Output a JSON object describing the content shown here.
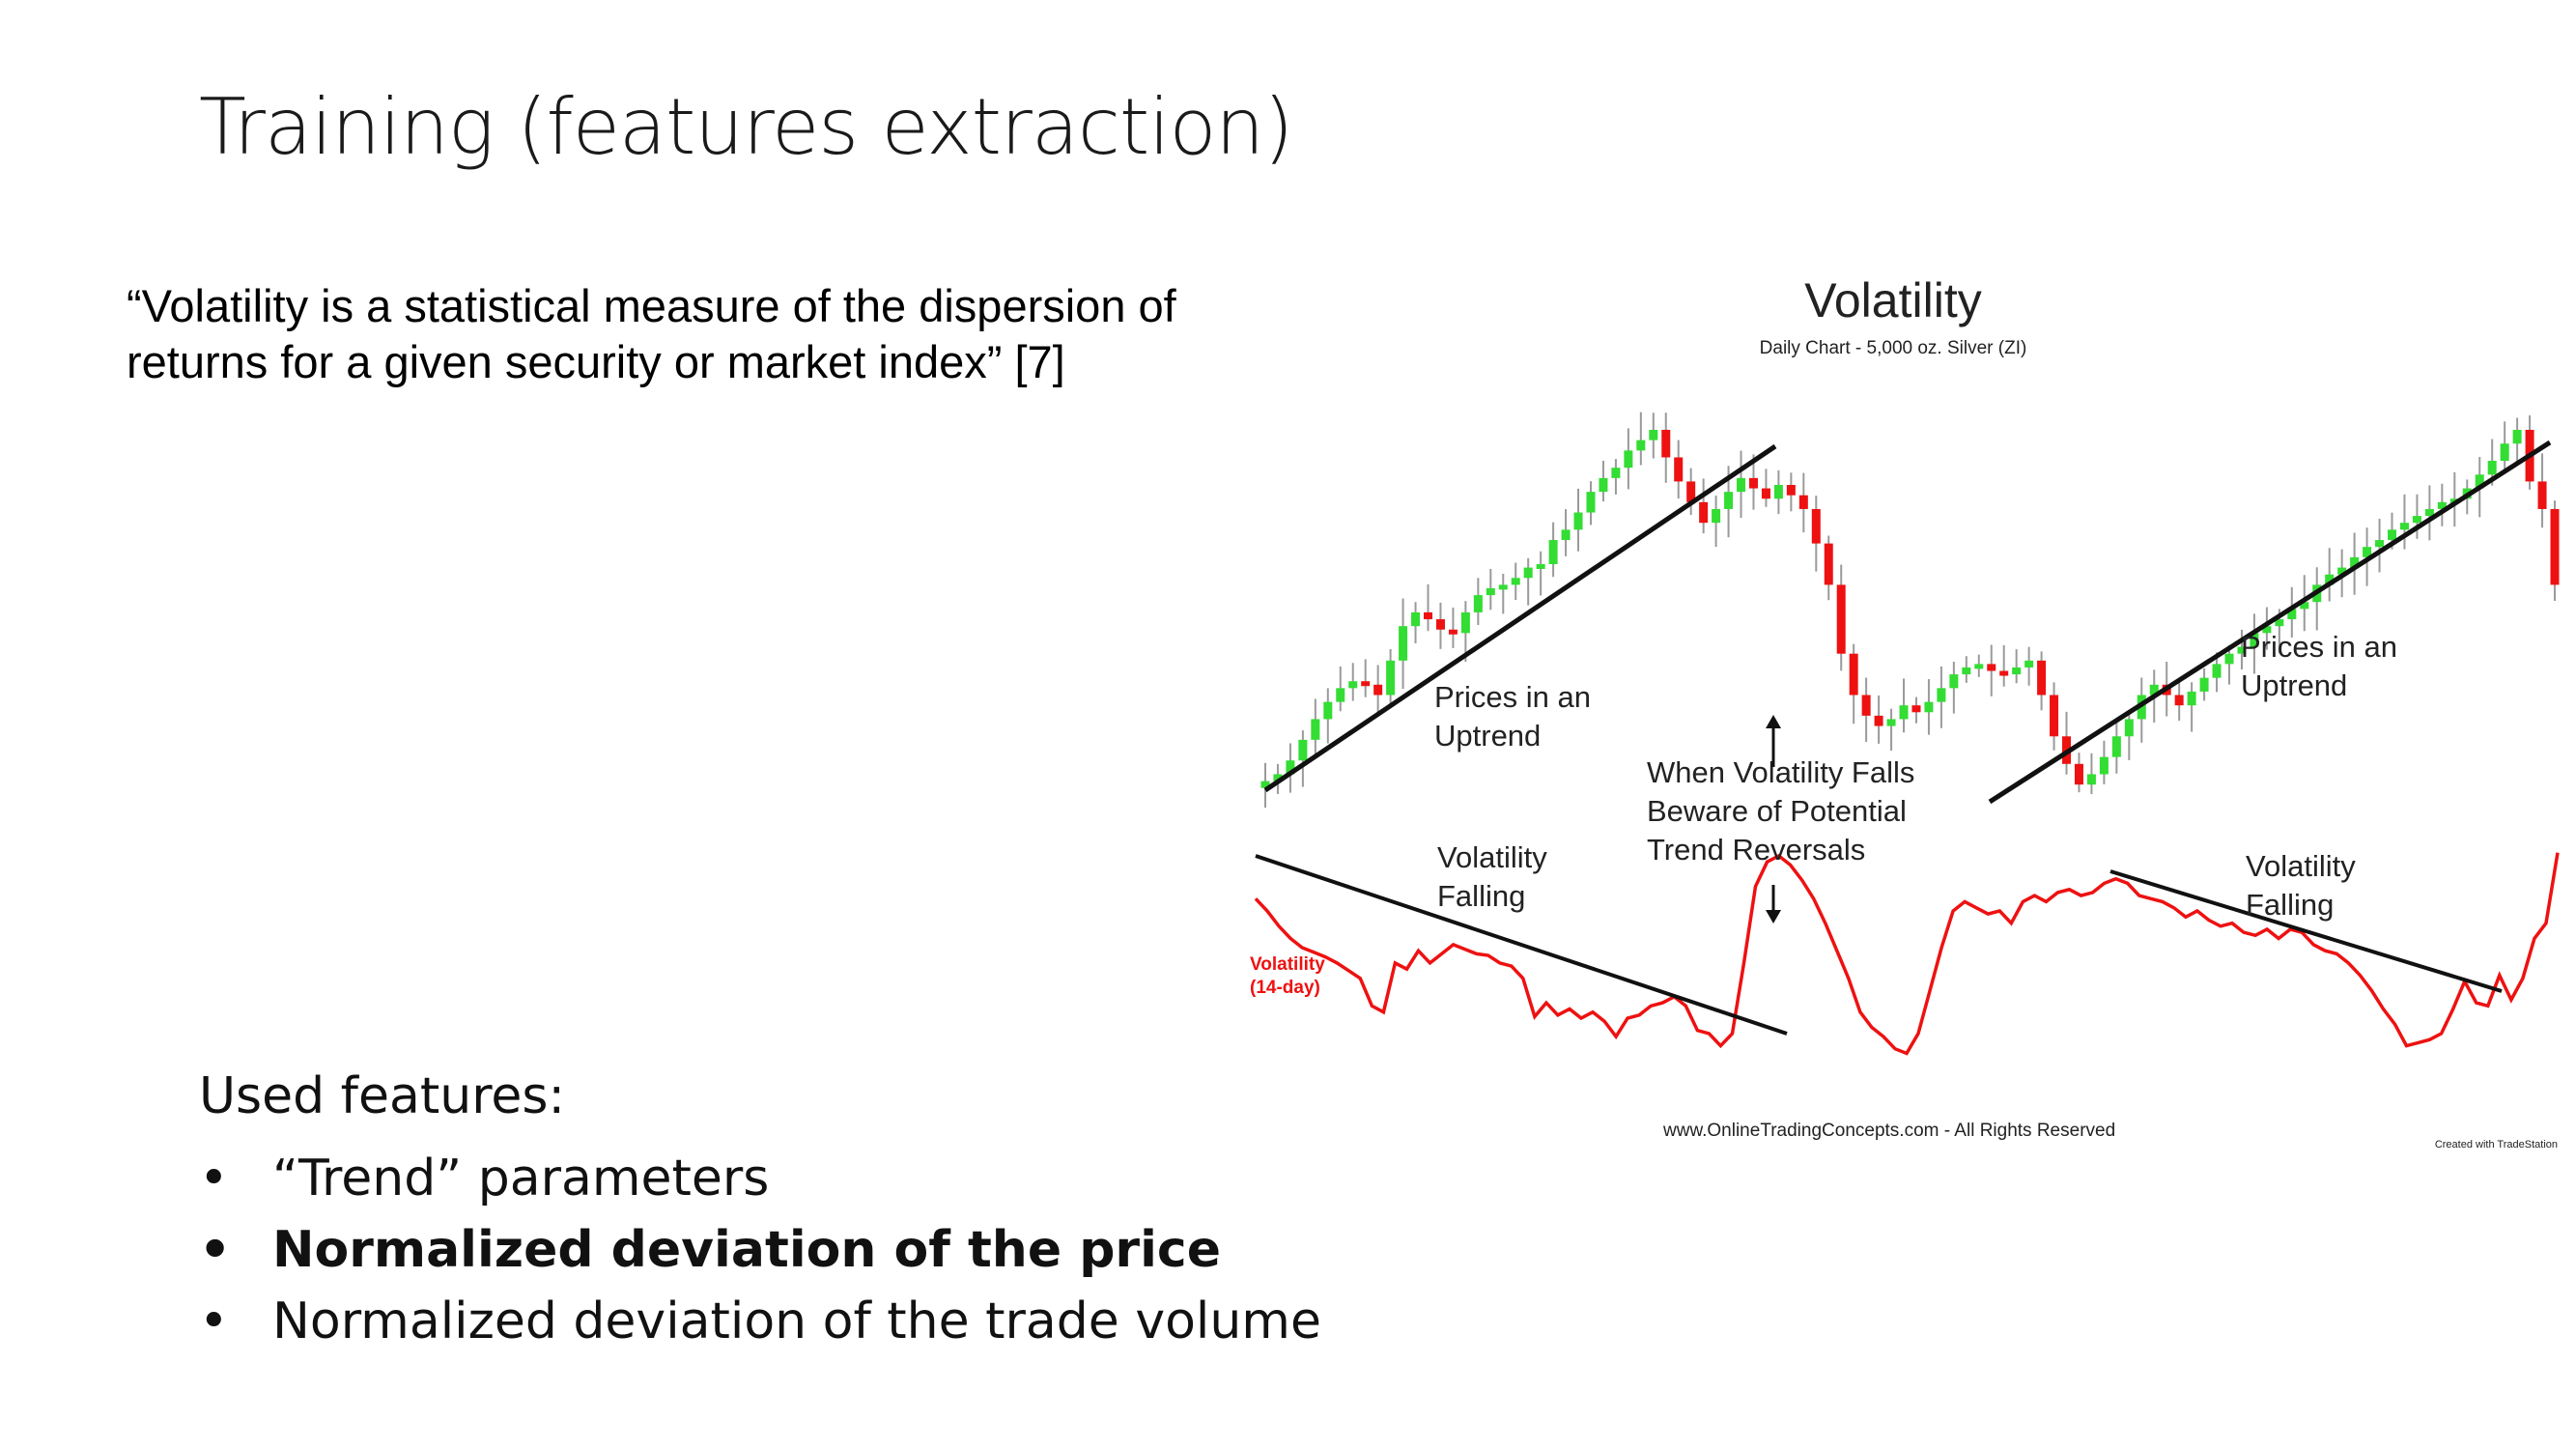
{
  "slide": {
    "title": "Training (features extraction)",
    "quote": "“Volatility is a statistical measure of the dispersion of returns for a given security or market index” [7]",
    "features_title": "Used features:",
    "features": [
      {
        "label": "“Trend” parameters",
        "bold": false
      },
      {
        "label": "Normalized deviation of the price",
        "bold": true
      },
      {
        "label": "Normalized deviation of the trade volume",
        "bold": false
      }
    ]
  },
  "chart_data": {
    "type": "line",
    "title": "Volatility",
    "subtitle": "Daily Chart - 5,000 oz. Silver (ZI)",
    "series": [
      {
        "name": "Price",
        "style": "candlestick",
        "up_color": "#33dd33",
        "down_color": "#ee1111",
        "values": [
          1,
          3,
          7,
          13,
          19,
          24,
          28,
          30,
          29,
          26,
          36,
          46,
          50,
          48,
          45,
          44,
          50,
          55,
          57,
          58,
          60,
          63,
          64,
          71,
          74,
          79,
          85,
          89,
          92,
          97,
          100,
          103,
          95,
          88,
          82,
          76,
          80,
          85,
          89,
          86,
          83,
          87,
          84,
          80,
          70,
          58,
          38,
          26,
          20,
          17,
          19,
          23,
          21,
          24,
          28,
          32,
          34,
          35,
          33,
          32,
          34,
          36,
          26,
          14,
          6,
          0,
          3,
          8,
          14,
          19,
          26,
          29,
          26,
          23,
          27,
          31,
          35,
          38,
          40,
          44,
          46,
          48,
          51,
          53,
          58,
          61,
          63,
          66,
          69,
          71,
          74,
          76,
          78,
          80,
          82,
          83,
          86,
          90,
          94,
          99,
          103,
          88,
          80,
          58
        ]
      },
      {
        "name": "Volatility (14-day)",
        "color": "#ee1111",
        "values": [
          82,
          74,
          64,
          56,
          50,
          47,
          44,
          40,
          35,
          30,
          12,
          8,
          40,
          36,
          48,
          40,
          46,
          52,
          49,
          46,
          45,
          40,
          38,
          30,
          5,
          14,
          6,
          10,
          4,
          8,
          2,
          -8,
          4,
          6,
          12,
          14,
          18,
          12,
          -4,
          -6,
          -14,
          -6,
          40,
          90,
          106,
          110,
          104,
          94,
          82,
          66,
          48,
          30,
          8,
          -2,
          -8,
          -16,
          -19,
          -6,
          22,
          50,
          74,
          80,
          76,
          72,
          74,
          66,
          80,
          84,
          80,
          86,
          88,
          84,
          86,
          92,
          95,
          92,
          84,
          82,
          80,
          76,
          70,
          74,
          68,
          64,
          66,
          60,
          58,
          62,
          56,
          62,
          60,
          52,
          48,
          46,
          40,
          32,
          22,
          10,
          0,
          -14,
          -12,
          -10,
          -6,
          10,
          28,
          14,
          12,
          32,
          16,
          30,
          56,
          66,
          112
        ]
      }
    ],
    "annotations": [
      {
        "text": "Prices in an Uptrend",
        "lines": [
          "Prices in an",
          "Uptrend"
        ]
      },
      {
        "text": "Prices in an Uptrend",
        "lines": [
          "Prices in an",
          "Uptrend"
        ]
      },
      {
        "text": "When Volatility Falls Beware of Potential Trend Reversals",
        "lines": [
          "When Volatility Falls",
          "Beware of Potential",
          "Trend Reversals"
        ]
      },
      {
        "text": "Volatility Falling",
        "lines": [
          "Volatility",
          "Falling"
        ]
      },
      {
        "text": "Volatility Falling",
        "lines": [
          "Volatility",
          "Falling"
        ]
      },
      {
        "text": "Volatility (14-day)",
        "lines": [
          "Volatility",
          "(14-day)"
        ]
      }
    ],
    "footer": "www.OnlineTradingConcepts.com - All Rights Reserved",
    "credit": "Created with TradeStation",
    "grid": false,
    "legend": "none"
  }
}
